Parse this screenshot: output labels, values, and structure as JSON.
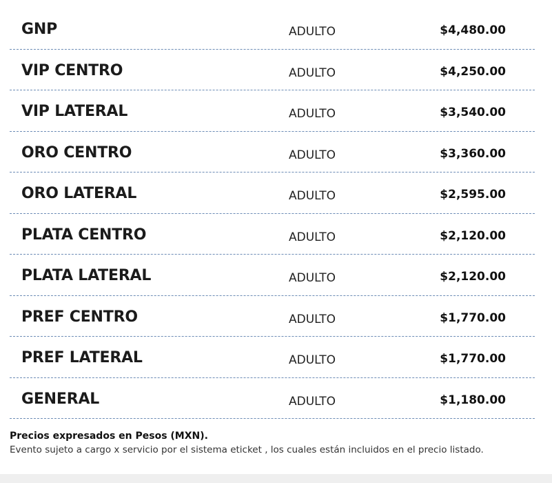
{
  "price_table": {
    "rows": [
      {
        "zone": "GNP",
        "type": "ADULTO",
        "price": "$4,480.00"
      },
      {
        "zone": "VIP CENTRO",
        "type": "ADULTO",
        "price": "$4,250.00"
      },
      {
        "zone": "VIP LATERAL",
        "type": "ADULTO",
        "price": "$3,540.00"
      },
      {
        "zone": "ORO CENTRO",
        "type": "ADULTO",
        "price": "$3,360.00"
      },
      {
        "zone": "ORO LATERAL",
        "type": "ADULTO",
        "price": "$2,595.00"
      },
      {
        "zone": "PLATA CENTRO",
        "type": "ADULTO",
        "price": "$2,120.00"
      },
      {
        "zone": "PLATA LATERAL",
        "type": "ADULTO",
        "price": "$2,120.00"
      },
      {
        "zone": "PREF CENTRO",
        "type": "ADULTO",
        "price": "$1,770.00"
      },
      {
        "zone": "PREF LATERAL",
        "type": "ADULTO",
        "price": "$1,770.00"
      },
      {
        "zone": "GENERAL",
        "type": "ADULTO",
        "price": "$1,180.00"
      }
    ]
  },
  "notes": {
    "currency": "Precios expresados en Pesos (MXN).",
    "service_charge": "Evento sujeto a cargo x servicio por el sistema eticket , los cuales están incluidos en el precio listado."
  },
  "colors": {
    "divider": "#6b8bb5",
    "bottom_band": "#efefef"
  }
}
